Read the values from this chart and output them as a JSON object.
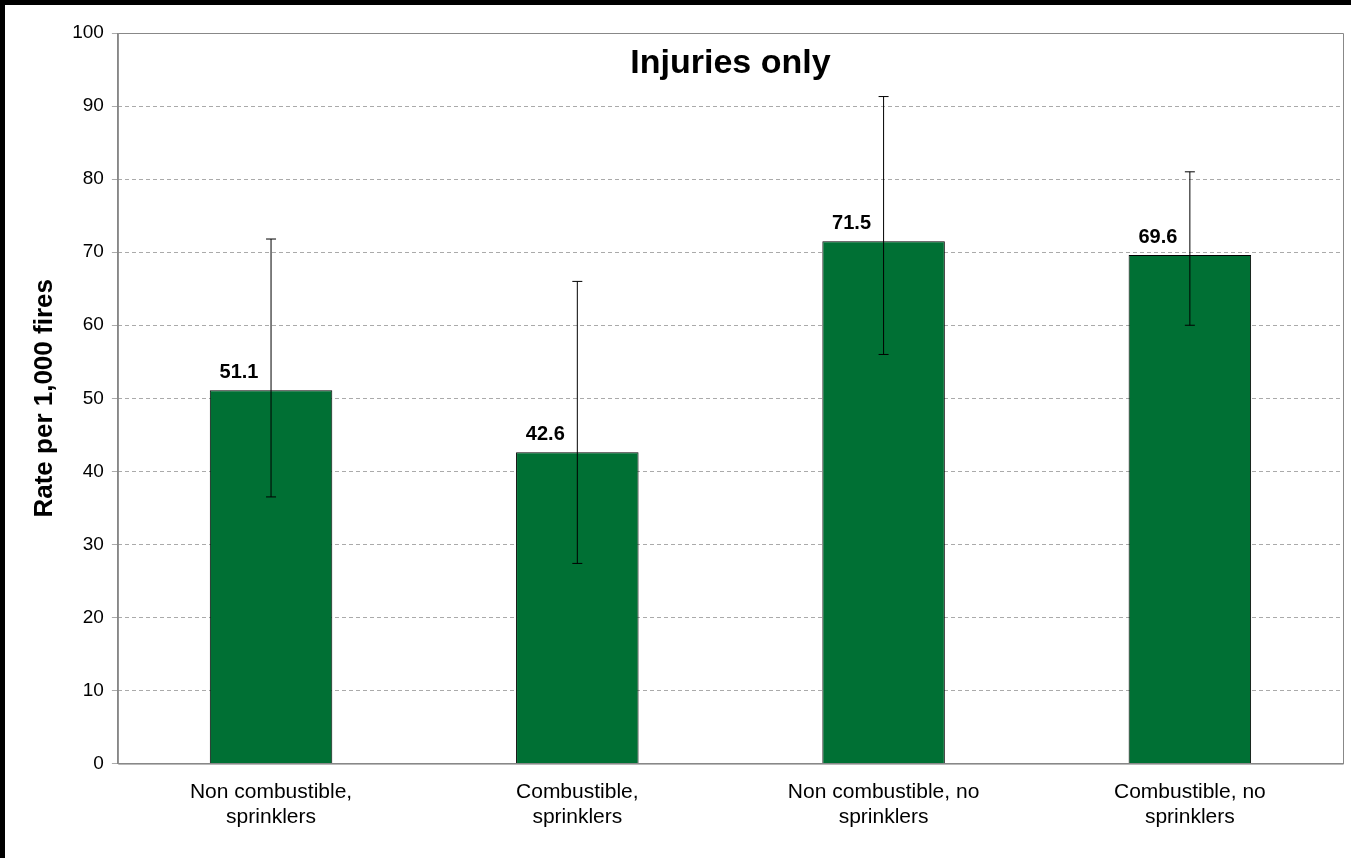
{
  "chart_data": {
    "type": "bar",
    "title": "Injuries only",
    "ylabel": "Rate per 1,000 fires",
    "categories": [
      "Non combustible, sprinklers",
      "Combustible, sprinklers",
      "Non combustible, no sprinklers",
      "Combustible, no sprinklers"
    ],
    "values": [
      51.1,
      42.6,
      71.5,
      69.6
    ],
    "errors": [
      [
        36.5,
        71.8
      ],
      [
        27.4,
        66.0
      ],
      [
        56.0,
        91.3
      ],
      [
        60.0,
        81.0
      ]
    ],
    "color": "#007034",
    "ylim": [
      0,
      100
    ],
    "yticks": [
      0,
      10,
      20,
      30,
      40,
      50,
      60,
      70,
      80,
      90,
      100
    ],
    "grid": "y",
    "legend": false,
    "data_labels": true
  }
}
